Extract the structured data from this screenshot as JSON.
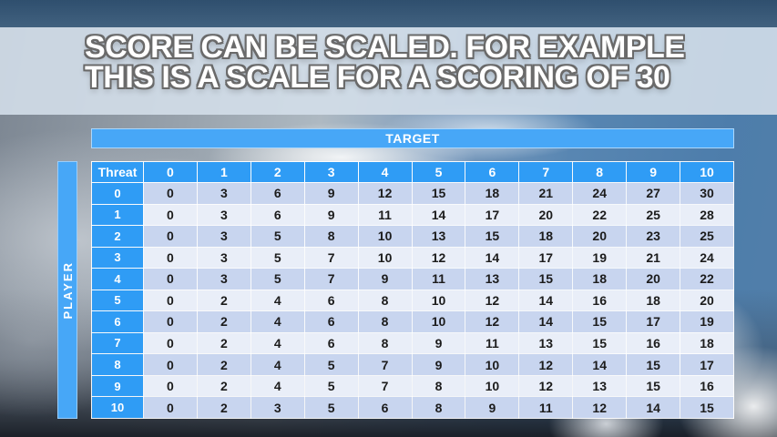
{
  "title": {
    "line1": "SCORE CAN BE SCALED. FOR EXAMPLE",
    "line2": "THIS IS A SCALE FOR A SCORING OF 30"
  },
  "matrix": {
    "target_label": "TARGET",
    "player_label": "PLAYER",
    "corner_label": "Threat",
    "column_headers": [
      "0",
      "1",
      "2",
      "3",
      "4",
      "5",
      "6",
      "7",
      "8",
      "9",
      "10"
    ],
    "rows": [
      {
        "label": "0",
        "values": [
          "0",
          "3",
          "6",
          "9",
          "12",
          "15",
          "18",
          "21",
          "24",
          "27",
          "30"
        ]
      },
      {
        "label": "1",
        "values": [
          "0",
          "3",
          "6",
          "9",
          "11",
          "14",
          "17",
          "20",
          "22",
          "25",
          "28"
        ]
      },
      {
        "label": "2",
        "values": [
          "0",
          "3",
          "5",
          "8",
          "10",
          "13",
          "15",
          "18",
          "20",
          "23",
          "25"
        ]
      },
      {
        "label": "3",
        "values": [
          "0",
          "3",
          "5",
          "7",
          "10",
          "12",
          "14",
          "17",
          "19",
          "21",
          "24"
        ]
      },
      {
        "label": "4",
        "values": [
          "0",
          "3",
          "5",
          "7",
          "9",
          "11",
          "13",
          "15",
          "18",
          "20",
          "22"
        ]
      },
      {
        "label": "5",
        "values": [
          "0",
          "2",
          "4",
          "6",
          "8",
          "10",
          "12",
          "14",
          "16",
          "18",
          "20"
        ]
      },
      {
        "label": "6",
        "values": [
          "0",
          "2",
          "4",
          "6",
          "8",
          "10",
          "12",
          "14",
          "15",
          "17",
          "19"
        ]
      },
      {
        "label": "7",
        "values": [
          "0",
          "2",
          "4",
          "6",
          "8",
          "9",
          "11",
          "13",
          "15",
          "16",
          "18"
        ]
      },
      {
        "label": "8",
        "values": [
          "0",
          "2",
          "4",
          "5",
          "7",
          "9",
          "10",
          "12",
          "14",
          "15",
          "17"
        ]
      },
      {
        "label": "9",
        "values": [
          "0",
          "2",
          "4",
          "5",
          "7",
          "8",
          "10",
          "12",
          "13",
          "15",
          "16"
        ]
      },
      {
        "label": "10",
        "values": [
          "0",
          "2",
          "3",
          "5",
          "6",
          "8",
          "9",
          "11",
          "12",
          "14",
          "15"
        ]
      }
    ]
  },
  "colors": {
    "accent_blue": "#2f9cf5",
    "target_bar_blue": "#47a7f7",
    "row_even": "#c8d5ef",
    "row_odd": "#e9eef8",
    "cell_text": "#1c1c1c",
    "title_text": "#ffffff",
    "title_outline": "#6a6a6a"
  }
}
